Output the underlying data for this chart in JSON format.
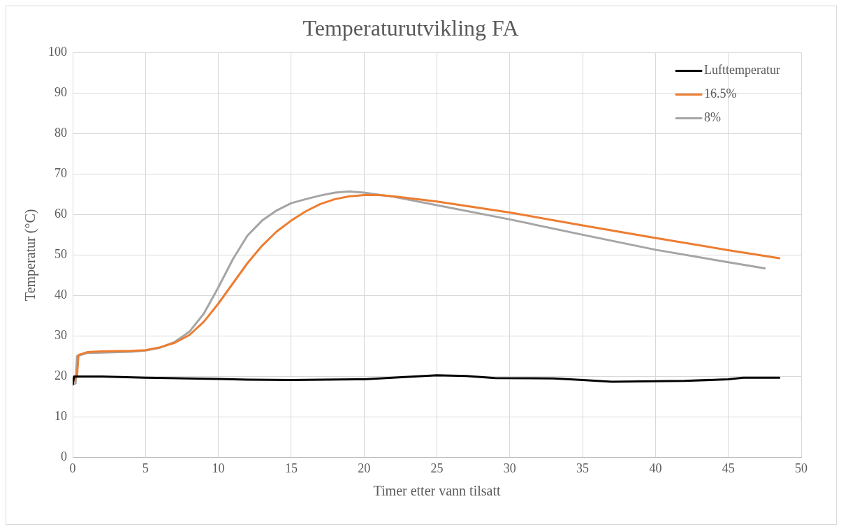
{
  "chart_data": {
    "type": "line",
    "title": "Temperaturutvikling FA",
    "xlabel": "Timer etter vann tilsatt",
    "ylabel": "Temperatur (°C)",
    "xlim": [
      0,
      50
    ],
    "xticks": [
      0,
      5,
      10,
      15,
      20,
      25,
      30,
      35,
      40,
      45,
      50
    ],
    "ylim": [
      0,
      100
    ],
    "yticks": [
      0,
      10,
      20,
      30,
      40,
      50,
      60,
      70,
      80,
      90,
      100
    ],
    "grid": true,
    "legend": "top right",
    "marker": "none",
    "line_style": "solid",
    "series": [
      {
        "name": "Lufttemperatur",
        "color": "#000000",
        "x": [
          0,
          0.1,
          2,
          5,
          10,
          12,
          15,
          20,
          23,
          25,
          27,
          29,
          33,
          35,
          37,
          40,
          42,
          45,
          46,
          48.5
        ],
        "values": [
          18,
          20,
          20,
          19.7,
          19.4,
          19.2,
          19.1,
          19.3,
          19.9,
          20.3,
          20.1,
          19.6,
          19.5,
          19.1,
          18.7,
          18.8,
          18.9,
          19.3,
          19.7,
          19.7
        ]
      },
      {
        "name": "16.5%",
        "color": "#ed7d31",
        "x": [
          0,
          0.3,
          0.4,
          1,
          2,
          4,
          5,
          6,
          7,
          8,
          9,
          10,
          11,
          12,
          13,
          14,
          15,
          16,
          17,
          18,
          19,
          20,
          21,
          22,
          25,
          30,
          35,
          40,
          45,
          48.5
        ],
        "values": [
          18.5,
          20,
          25.3,
          26,
          26.2,
          26.3,
          26.5,
          27.2,
          28.3,
          30.2,
          33.5,
          38,
          43,
          48,
          52.3,
          55.8,
          58.5,
          60.8,
          62.6,
          63.8,
          64.5,
          64.8,
          64.8,
          64.5,
          63.2,
          60.5,
          57.3,
          54.2,
          51.2,
          49.2
        ]
      },
      {
        "name": "8%",
        "color": "#a5a5a5",
        "x": [
          0,
          0.2,
          0.3,
          1,
          2,
          4,
          5,
          6,
          7,
          8,
          9,
          10,
          11,
          12,
          13,
          14,
          15,
          16,
          17,
          18,
          19,
          20,
          22,
          25,
          30,
          35,
          40,
          45,
          47.5
        ],
        "values": [
          18,
          18.3,
          25,
          25.8,
          25.9,
          26.1,
          26.4,
          27.1,
          28.5,
          31,
          35.5,
          42,
          49,
          54.8,
          58.5,
          61,
          62.8,
          63.8,
          64.7,
          65.4,
          65.7,
          65.4,
          64.4,
          62.3,
          58.8,
          55,
          51.3,
          48.2,
          46.7
        ]
      }
    ]
  }
}
